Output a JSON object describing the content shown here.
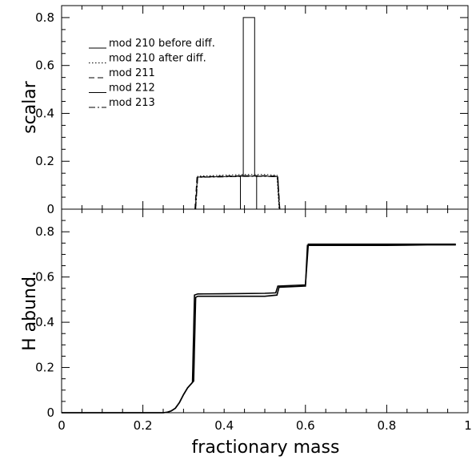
{
  "chart_data": [
    {
      "type": "line",
      "title": "",
      "xlabel": "",
      "ylabel": "scalar",
      "xlim": [
        0,
        1
      ],
      "ylim": [
        0,
        0.85
      ],
      "xticks": [
        0,
        0.2,
        0.4,
        0.6,
        0.8,
        1
      ],
      "yticks": [
        0,
        0.2,
        0.4,
        0.6,
        0.8
      ],
      "ytick_labels": [
        "0",
        "0.2",
        "0.4",
        "0.6",
        "0.8"
      ],
      "legend_placement": "top-left",
      "series": [
        {
          "name": "mod 210 before diff.",
          "dash": "solid",
          "x": [
            0.44,
            0.44,
            0.447,
            0.447,
            0.475,
            0.475,
            0.48,
            0.48
          ],
          "y": [
            0,
            0.14,
            0.14,
            0.8,
            0.8,
            0.14,
            0.14,
            0
          ]
        },
        {
          "name": "mod 210 after diff.",
          "dash": "dotted",
          "x": [
            0.33,
            0.335,
            0.4,
            0.45,
            0.5,
            0.53,
            0.535
          ],
          "y": [
            0,
            0.138,
            0.142,
            0.145,
            0.145,
            0.142,
            0
          ]
        },
        {
          "name": "mod 211",
          "dash": "dashed",
          "x": [
            0.328,
            0.333,
            0.4,
            0.45,
            0.5,
            0.532,
            0.537
          ],
          "y": [
            0,
            0.135,
            0.138,
            0.14,
            0.14,
            0.138,
            0
          ]
        },
        {
          "name": "mod 212",
          "dash": "solid",
          "x": [
            0.329,
            0.334,
            0.4,
            0.45,
            0.5,
            0.531,
            0.536
          ],
          "y": [
            0,
            0.134,
            0.136,
            0.138,
            0.138,
            0.136,
            0
          ]
        },
        {
          "name": "mod 213",
          "dash": "dashdot",
          "x": [
            0.33,
            0.335,
            0.4,
            0.45,
            0.5,
            0.532,
            0.537
          ],
          "y": [
            0,
            0.133,
            0.135,
            0.137,
            0.137,
            0.135,
            0
          ]
        }
      ]
    },
    {
      "type": "line",
      "title": "",
      "xlabel": "fractionary mass",
      "ylabel": "H abund.",
      "xlim": [
        0,
        1
      ],
      "ylim": [
        0,
        0.9
      ],
      "xticks": [
        0,
        0.2,
        0.4,
        0.6,
        0.8,
        1
      ],
      "xtick_labels": [
        "0",
        "0.2",
        "0.4",
        "0.6",
        "0.8",
        "1"
      ],
      "yticks": [
        0,
        0.2,
        0.4,
        0.6,
        0.8
      ],
      "ytick_labels": [
        "0",
        "0.2",
        "0.4",
        "0.6",
        "0.8"
      ],
      "series": [
        {
          "x": [
            0,
            0.25,
            0.26,
            0.27,
            0.28,
            0.29,
            0.3,
            0.31,
            0.32,
            0.325,
            0.33,
            0.335,
            0.4,
            0.5,
            0.53,
            0.535,
            0.6,
            0.605,
            0.7,
            0.8,
            0.9,
            0.97
          ],
          "y": [
            0,
            0,
            0.002,
            0.008,
            0.02,
            0.045,
            0.08,
            0.11,
            0.13,
            0.14,
            0.51,
            0.515,
            0.515,
            0.515,
            0.52,
            0.555,
            0.56,
            0.74,
            0.74,
            0.74,
            0.742,
            0.742
          ]
        },
        {
          "x": [
            0,
            0.25,
            0.26,
            0.27,
            0.28,
            0.29,
            0.3,
            0.31,
            0.32,
            0.322,
            0.327,
            0.335,
            0.4,
            0.5,
            0.527,
            0.532,
            0.6,
            0.607,
            0.7,
            0.8,
            0.9,
            0.97
          ],
          "y": [
            0,
            0,
            0.002,
            0.008,
            0.02,
            0.045,
            0.08,
            0.11,
            0.13,
            0.135,
            0.52,
            0.525,
            0.526,
            0.528,
            0.53,
            0.56,
            0.565,
            0.745,
            0.745,
            0.745,
            0.745,
            0.745
          ]
        }
      ]
    }
  ]
}
